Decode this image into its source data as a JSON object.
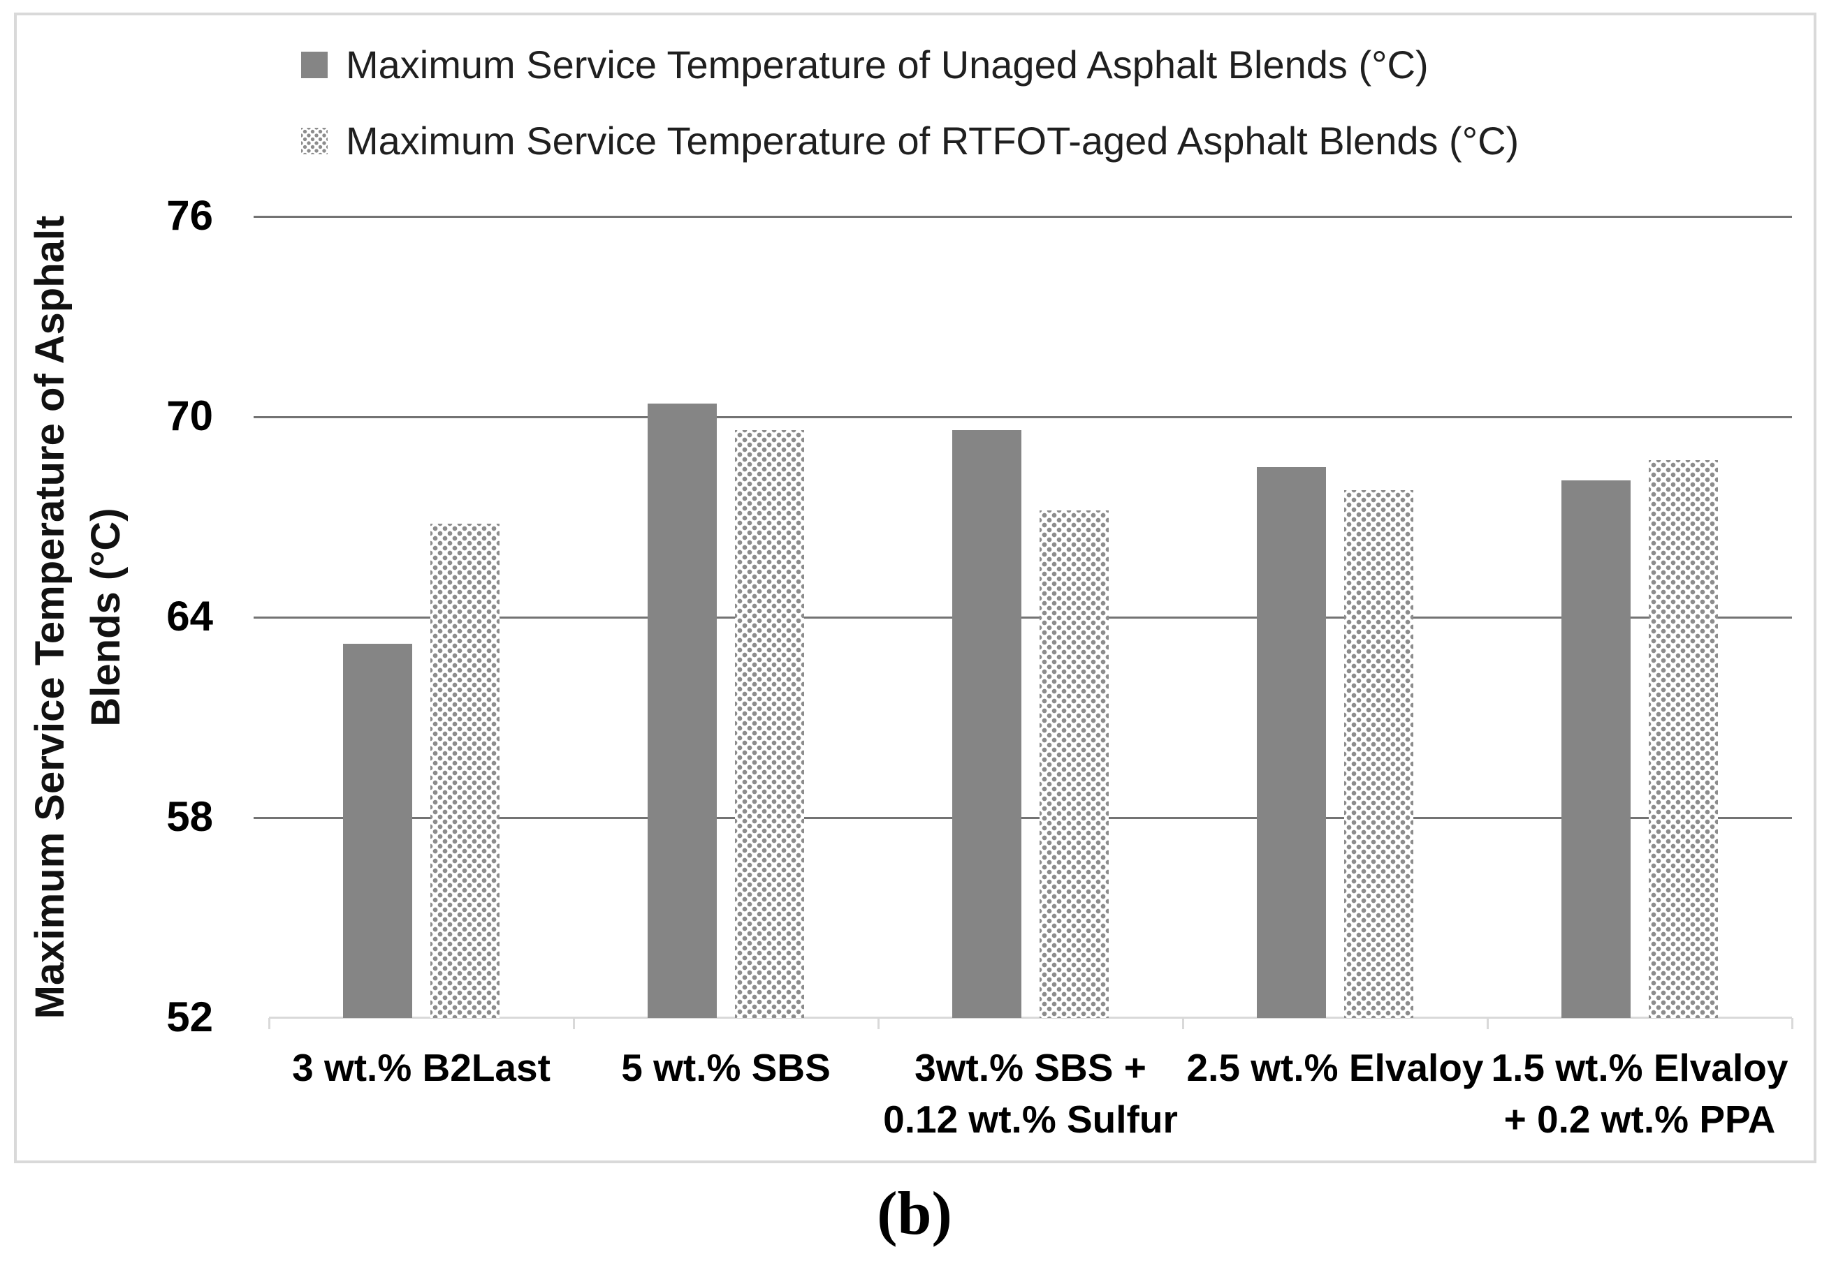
{
  "chart_data": {
    "type": "bar",
    "title": "",
    "categories": [
      "3 wt.% B2Last",
      "5 wt.% SBS",
      "3wt.% SBS + 0.12 wt.% Sulfur",
      "2.5 wt.% Elvaloy",
      "1.5 wt.% Elvaloy + 0.2 wt.% PPA"
    ],
    "category_label_lines": [
      [
        "3 wt.% B2Last"
      ],
      [
        "5 wt.% SBS"
      ],
      [
        "3wt.% SBS +",
        "0.12 wt.% Sulfur"
      ],
      [
        "2.5 wt.% Elvaloy"
      ],
      [
        "1.5 wt.% Elvaloy",
        "+ 0.2 wt.% PPA"
      ]
    ],
    "series": [
      {
        "name": "Maximum Service Temperature of Unaged Asphalt Blends (°C)",
        "style": "solid",
        "values": [
          63.2,
          70.4,
          69.6,
          68.5,
          68.1
        ]
      },
      {
        "name": "Maximum Service Temperature of RTFOT-aged Asphalt Blends (°C)",
        "style": "dotted",
        "values": [
          66.8,
          69.6,
          67.2,
          67.8,
          68.7
        ]
      }
    ],
    "xlabel": "",
    "ylabel": "Maximum Service Temperature of Asphalt Blends (°C)",
    "ylabel_lines": [
      "Maximum Service Temperature of Asphalt",
      "Blends (°C)"
    ],
    "ylim": [
      52,
      76
    ],
    "yticks": [
      52,
      58,
      64,
      70,
      76
    ],
    "grid": "horizontal",
    "legend_position": "top-left",
    "caption": "(b)",
    "colors": {
      "solid_bar": "#858585",
      "pattern_dot": "#8c8c8c",
      "gridline": "#737373",
      "axis_line": "#d9d9d9",
      "figure_border": "#d9d9d9",
      "text": "#1a1a1a"
    }
  }
}
